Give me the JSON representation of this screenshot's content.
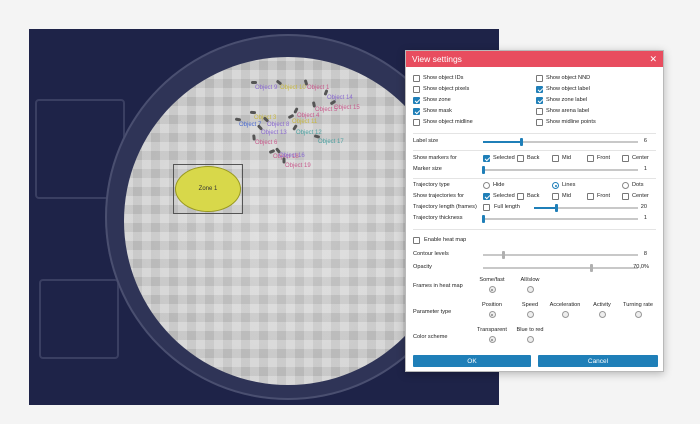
{
  "arena": {
    "zone_label": "Zone 1",
    "object_labels": [
      {
        "text": "Object 9",
        "color": "#8a6ad0"
      },
      {
        "text": "Object 10",
        "color": "#c8b840"
      },
      {
        "text": "Object 1",
        "color": "#c85a8c"
      },
      {
        "text": "Object 14",
        "color": "#8a6ad0"
      },
      {
        "text": "Object 15",
        "color": "#c85a8c"
      },
      {
        "text": "Object 3",
        "color": "#c8b840"
      },
      {
        "text": "Object 8",
        "color": "#8a6ad0"
      },
      {
        "text": "Object 5",
        "color": "#c85a8c"
      },
      {
        "text": "Object 4",
        "color": "#c85a8c"
      },
      {
        "text": "Object 11",
        "color": "#c8b840"
      },
      {
        "text": "Object 7",
        "color": "#4a6ad0"
      },
      {
        "text": "Object 13",
        "color": "#8a6ad0"
      },
      {
        "text": "Object 6",
        "color": "#c85a8c"
      },
      {
        "text": "Object 12",
        "color": "#4aa0a0"
      },
      {
        "text": "Object 18",
        "color": "#c85a8c"
      },
      {
        "text": "Object 17",
        "color": "#4aa0a0"
      },
      {
        "text": "Object 16",
        "color": "#8a6ad0"
      },
      {
        "text": "Object 19",
        "color": "#c85a8c"
      }
    ]
  },
  "dialog": {
    "title": "View settings",
    "close_glyph": "✕",
    "toggles": {
      "left": [
        {
          "label": "Show object IDs",
          "checked": false
        },
        {
          "label": "Show object pixels",
          "checked": false
        },
        {
          "label": "Show zone",
          "checked": true
        },
        {
          "label": "Show mask",
          "checked": true
        },
        {
          "label": "Show object midline",
          "checked": false
        }
      ],
      "right": [
        {
          "label": "Show object NND",
          "checked": false
        },
        {
          "label": "Show object label",
          "checked": true
        },
        {
          "label": "Show zone label",
          "checked": true
        },
        {
          "label": "Show arena label",
          "checked": false
        },
        {
          "label": "Show midline points",
          "checked": false
        }
      ]
    },
    "label_size": {
      "label": "Label size",
      "value": "6",
      "fraction": 0.25
    },
    "markers": {
      "label": "Show markers for",
      "options": [
        {
          "label": "Selected",
          "checked": true
        },
        {
          "label": "Back",
          "checked": false
        },
        {
          "label": "Mid",
          "checked": false
        },
        {
          "label": "Front",
          "checked": false
        },
        {
          "label": "Center",
          "checked": false
        }
      ]
    },
    "marker_size": {
      "label": "Marker size",
      "value": "1",
      "fraction": 0.0
    },
    "trajectory_type": {
      "label": "Trajectory type",
      "options": [
        {
          "label": "Hide",
          "selected": false
        },
        {
          "label": "Lines",
          "selected": true
        },
        {
          "label": "Dots",
          "selected": false
        }
      ]
    },
    "trajectories_for": {
      "label": "Show trajectories for",
      "options": [
        {
          "label": "Selected",
          "checked": true
        },
        {
          "label": "Back",
          "checked": false
        },
        {
          "label": "Mid",
          "checked": false
        },
        {
          "label": "Front",
          "checked": false
        },
        {
          "label": "Center",
          "checked": false
        }
      ]
    },
    "trajectory_length": {
      "label": "Trajectory length (frames)",
      "full_length_label": "Full length",
      "full_length_checked": false,
      "value": "20",
      "fraction": 0.22
    },
    "trajectory_thickness": {
      "label": "Trajectory thickness",
      "value": "1",
      "fraction": 0.0
    },
    "heatmap": {
      "label": "Enable heat map",
      "checked": false
    },
    "contour_levels": {
      "label": "Contour levels",
      "value": "8",
      "fraction": 0.13
    },
    "opacity": {
      "label": "Opacity",
      "value": "70,0%",
      "fraction": 0.7
    },
    "frames": {
      "label": "Frames in heat map",
      "options": [
        {
          "label": "Some/fast",
          "selected": true
        },
        {
          "label": "All/slow",
          "selected": false
        }
      ]
    },
    "parameter": {
      "label": "Parameter type",
      "options": [
        {
          "label": "Position",
          "selected": true
        },
        {
          "label": "Speed",
          "selected": false
        },
        {
          "label": "Acceleration",
          "selected": false
        },
        {
          "label": "Activity",
          "selected": false
        },
        {
          "label": "Turning rate",
          "selected": false
        }
      ]
    },
    "color_scheme": {
      "label": "Color scheme",
      "options": [
        {
          "label": "Transparent",
          "selected": true
        },
        {
          "label": "Blue to red",
          "selected": false
        }
      ]
    },
    "ok_label": "OK",
    "cancel_label": "Cancel"
  }
}
